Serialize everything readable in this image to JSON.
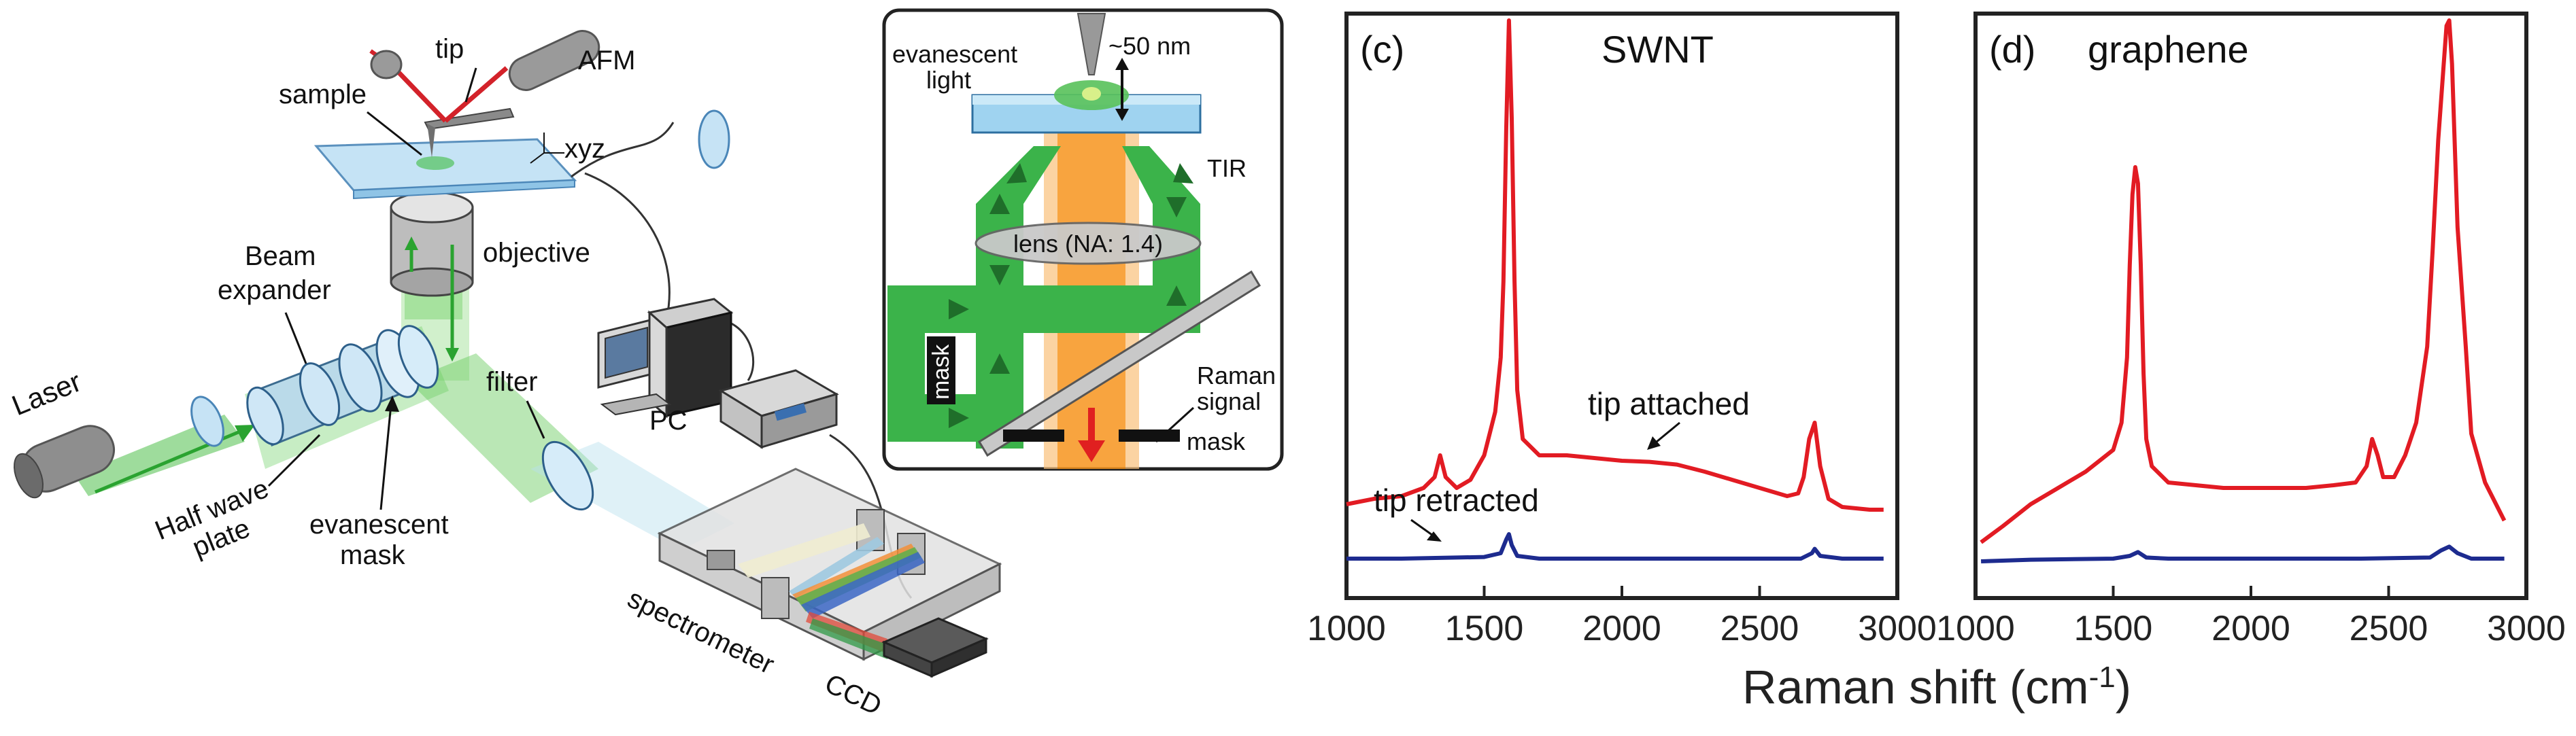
{
  "setup": {
    "labels": {
      "tip": "tip",
      "afm": "AFM",
      "sample": "sample",
      "xyz": "xyz",
      "objective": "objective",
      "beam_expander_line1": "Beam",
      "beam_expander_line2": "expander",
      "laser": "Laser",
      "half_wave_line1": "Half wave",
      "half_wave_line2": "plate",
      "evanescent_mask_line1": "evanescent",
      "evanescent_mask_line2": "mask",
      "filter": "filter",
      "pc": "PC",
      "spectrometer": "spectrometer",
      "ccd": "CCD"
    },
    "colors": {
      "laser_green": "#3dbb3a",
      "arrow_dark_green": "#1f6e2a",
      "tip_red": "#d3222a",
      "glass_blue": "#a8d4ee",
      "device_gray": "#9a9a9a"
    }
  },
  "inset": {
    "labels": {
      "evanescent_line1": "evanescent",
      "evanescent_line2": "light",
      "gap": "~50 nm",
      "tir": "TIR",
      "lens": "lens (NA: 1.4)",
      "mask_vertical": "mask",
      "raman_line1": "Raman",
      "raman_line2": "signal",
      "mask_bottom": "mask"
    },
    "colors": {
      "green_beam": "#3bb34a",
      "raman_orange": "#f7941d",
      "raman_arrow": "#e02020",
      "slab_blue": "#9fd3f0"
    }
  },
  "shared_xlabel": "Raman shift (cm-1)",
  "chart_data": [
    {
      "type": "line",
      "panel_label": "(c)",
      "title": "SWNT",
      "xlim": [
        1000,
        3000
      ],
      "xticks": [
        1000,
        1500,
        2000,
        2500,
        3000
      ],
      "y_ticks_shown": false,
      "annotations": [
        "tip attached",
        "tip retracted"
      ],
      "series": [
        {
          "name": "tip attached",
          "color": "#e21b23",
          "x": [
            1000,
            1100,
            1200,
            1280,
            1320,
            1340,
            1360,
            1400,
            1450,
            1500,
            1540,
            1560,
            1570,
            1580,
            1590,
            1600,
            1610,
            1620,
            1640,
            1700,
            1800,
            1900,
            2000,
            2100,
            2200,
            2300,
            2400,
            2500,
            2600,
            2640,
            2660,
            2680,
            2700,
            2720,
            2750,
            2800,
            2900,
            2950
          ],
          "y": [
            11,
            12,
            12.5,
            14,
            16,
            20,
            16,
            14,
            15.5,
            20,
            28,
            38,
            52,
            80,
            100,
            82,
            52,
            32,
            23,
            20,
            20,
            19.5,
            19,
            18.8,
            18.3,
            17,
            15.5,
            14,
            12.5,
            13,
            16,
            23,
            26,
            18,
            12,
            10.5,
            10,
            10
          ]
        },
        {
          "name": "tip retracted",
          "color": "#1d2b8f",
          "x": [
            1000,
            1200,
            1400,
            1500,
            1560,
            1580,
            1590,
            1600,
            1620,
            1700,
            2000,
            2400,
            2650,
            2690,
            2700,
            2720,
            2800,
            2950
          ],
          "y": [
            1,
            1,
            1.2,
            1.3,
            2,
            4.5,
            5.5,
            3.5,
            1.5,
            1,
            1,
            1,
            1,
            2,
            2.8,
            1.5,
            1,
            1
          ]
        }
      ]
    },
    {
      "type": "line",
      "panel_label": "(d)",
      "title": "graphene",
      "xlim": [
        1000,
        3000
      ],
      "xticks": [
        1000,
        1500,
        2000,
        2500,
        3000
      ],
      "y_ticks_shown": false,
      "series": [
        {
          "name": "tip attached",
          "color": "#e21b23",
          "x": [
            1020,
            1100,
            1200,
            1300,
            1400,
            1450,
            1500,
            1530,
            1550,
            1560,
            1570,
            1580,
            1590,
            1600,
            1610,
            1620,
            1640,
            1700,
            1800,
            1900,
            2000,
            2100,
            2200,
            2300,
            2380,
            2420,
            2440,
            2460,
            2480,
            2520,
            2560,
            2600,
            2640,
            2660,
            2680,
            2700,
            2710,
            2720,
            2730,
            2750,
            2780,
            2800,
            2850,
            2900,
            2920
          ],
          "y": [
            4,
            7,
            11,
            14,
            17,
            19,
            21,
            26,
            38,
            55,
            68,
            73,
            70,
            55,
            35,
            23,
            18,
            15,
            14.5,
            14,
            14,
            14,
            14,
            14.5,
            15,
            18,
            23,
            20,
            16,
            16,
            20,
            26,
            40,
            58,
            78,
            92,
            99,
            100,
            92,
            62,
            40,
            24,
            15,
            10,
            8
          ]
        },
        {
          "name": "tip retracted",
          "color": "#1d2b8f",
          "x": [
            1020,
            1200,
            1500,
            1560,
            1590,
            1620,
            1700,
            2000,
            2400,
            2650,
            2690,
            2720,
            2750,
            2800,
            2920
          ],
          "y": [
            0.5,
            0.8,
            1,
            1.5,
            2.2,
            1.2,
            1,
            1,
            1,
            1.2,
            2.5,
            3.2,
            2,
            1,
            1
          ]
        }
      ]
    }
  ]
}
